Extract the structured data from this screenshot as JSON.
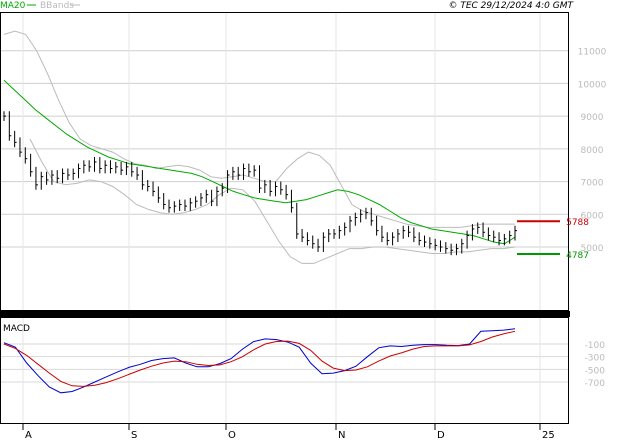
{
  "header": {
    "legend": [
      {
        "label": "MA20",
        "color": "#00aa00"
      },
      {
        "label": "BBands",
        "color": "#bbbbbb"
      }
    ],
    "copyright": "© TEC 29/12/2024 4:0 GMT"
  },
  "colors": {
    "price": "#000000",
    "ma20": "#00aa00",
    "bbands": "#bbbbbb",
    "macd": "#0000cc",
    "signal": "#cc0000",
    "resistance": "#cc0000",
    "support": "#009900"
  },
  "chart_data": [
    {
      "type": "ohlc",
      "title": "",
      "xlabel": "",
      "ylabel": "",
      "x_ticks": [
        "A",
        "S",
        "O",
        "N",
        "D",
        "25"
      ],
      "y_ticks": [
        "11000",
        "10000",
        "9000",
        "8000",
        "7000",
        "6000",
        "5000"
      ],
      "ylim": [
        4000,
        12000
      ],
      "grid": true,
      "close": [
        9000,
        8400,
        8200,
        7900,
        7700,
        7300,
        6900,
        7150,
        7050,
        7200,
        7100,
        7250,
        7200,
        7250,
        7400,
        7500,
        7450,
        7600,
        7400,
        7500,
        7400,
        7450,
        7350,
        7450,
        7300,
        7200,
        6900,
        6850,
        6700,
        6500,
        6300,
        6200,
        6250,
        6300,
        6250,
        6350,
        6400,
        6500,
        6600,
        6400,
        6700,
        6800,
        7200,
        7300,
        7200,
        7400,
        7300,
        7350,
        6800,
        6900,
        6700,
        6850,
        6750,
        6600,
        6200,
        5400,
        5300,
        5200,
        5100,
        5000,
        5300,
        5400,
        5400,
        5500,
        5600,
        5800,
        5900,
        6000,
        6050,
        5800,
        5500,
        5300,
        5200,
        5300,
        5400,
        5500,
        5450,
        5300,
        5200,
        5150,
        5100,
        5050,
        5000,
        4950,
        4900,
        4950,
        5100,
        5350,
        5550,
        5600,
        5450,
        5350,
        5300,
        5200,
        5250,
        5350,
        5500
      ],
      "ma20": [
        10100,
        9800,
        9500,
        9200,
        8950,
        8700,
        8450,
        8250,
        8050,
        7900,
        7750,
        7650,
        7550,
        7500,
        7450,
        7400,
        7350,
        7300,
        7250,
        7150,
        7000,
        6850,
        6700,
        6600,
        6500,
        6450,
        6400,
        6350,
        6400,
        6450,
        6550,
        6650,
        6750,
        6700,
        6600,
        6450,
        6300,
        6100,
        5900,
        5750,
        5650,
        5550,
        5500,
        5450,
        5400,
        5350,
        5250,
        5150,
        5100,
        5300
      ],
      "bb_upper": [
        11500,
        11600,
        11500,
        11000,
        10300,
        9500,
        8800,
        8300,
        8100,
        8000,
        7900,
        7700,
        7550,
        7500,
        7400,
        7450,
        7500,
        7450,
        7350,
        7150,
        7100,
        7150,
        7200,
        7100,
        7000,
        7000,
        7400,
        7700,
        7900,
        7800,
        7500,
        6900,
        6300,
        6100,
        6000,
        5900,
        5800,
        5700,
        5650,
        5600,
        5600,
        5600,
        5600,
        5650,
        5700,
        5700,
        5700,
        5700
      ],
      "bb_lower": [
        8300,
        7600,
        7000,
        6900,
        6950,
        7050,
        7000,
        6850,
        6600,
        6300,
        6150,
        6050,
        6000,
        6050,
        6150,
        6300,
        6600,
        6800,
        6750,
        6400,
        5800,
        5200,
        4700,
        4500,
        4500,
        4650,
        4800,
        4950,
        4950,
        5000,
        5000,
        4950,
        4900,
        4850,
        4800,
        4800,
        4850,
        4850,
        4900,
        4950,
        4950,
        5000
      ],
      "levels": [
        {
          "label": "5788",
          "value": 5788,
          "color": "#cc0000"
        },
        {
          "label": "4787",
          "value": 4787,
          "color": "#009900"
        }
      ]
    },
    {
      "type": "line",
      "title": "MACD",
      "xlabel": "",
      "ylabel": "",
      "y_ticks": [
        "-100",
        "-300",
        "-500",
        "-700"
      ],
      "ylim": [
        -950,
        150
      ],
      "grid": true,
      "series": [
        {
          "name": "",
          "values": [
            -80,
            -150,
            -400,
            -600,
            -780,
            -870,
            -850,
            -780,
            -700,
            -620,
            -540,
            -470,
            -420,
            -360,
            -330,
            -320,
            -400,
            -460,
            -460,
            -410,
            -330,
            -180,
            -60,
            -20,
            -30,
            -70,
            -150,
            -400,
            -570,
            -560,
            -520,
            -450,
            -300,
            -160,
            -130,
            -140,
            -120,
            -110,
            -110,
            -120,
            -125,
            -100,
            100,
            110,
            120,
            140
          ]
        },
        {
          "name": "",
          "values": [
            -100,
            -170,
            -280,
            -420,
            -560,
            -690,
            -760,
            -770,
            -750,
            -710,
            -650,
            -580,
            -510,
            -450,
            -400,
            -370,
            -380,
            -420,
            -440,
            -430,
            -380,
            -300,
            -190,
            -100,
            -60,
            -55,
            -90,
            -200,
            -370,
            -480,
            -520,
            -510,
            -460,
            -370,
            -290,
            -240,
            -180,
            -140,
            -130,
            -130,
            -130,
            -115,
            -60,
            10,
            60,
            100
          ]
        }
      ]
    }
  ]
}
